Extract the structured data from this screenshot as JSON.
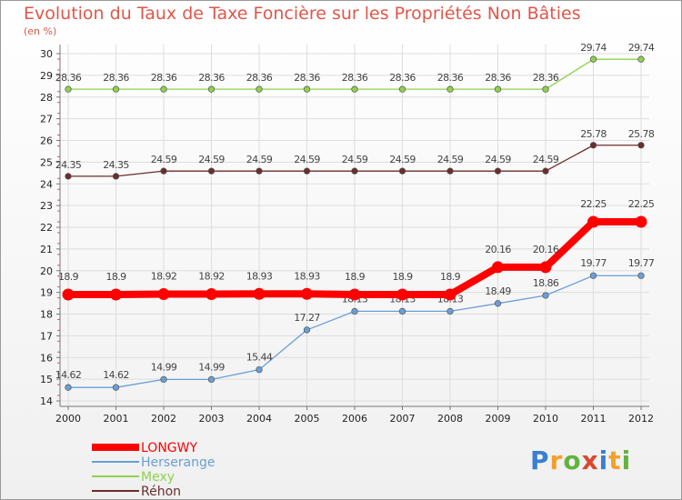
{
  "colors": {
    "title": "#e0564a",
    "LONGWY": "#ff0000",
    "Herserange": "#6a9ed6",
    "Mexy": "#8fd14f",
    "Rehon": "#6a2d2d",
    "grid": "#dddddd",
    "axis": "#777777",
    "axis_red": "#e05050"
  },
  "logo": {
    "letters": [
      "P",
      "r",
      "o",
      "x",
      "i",
      "t",
      "i"
    ],
    "colors": [
      "#3a7fd0",
      "#f2a02b",
      "#62b33e",
      "#d94a2b",
      "#3a7fd0",
      "#f2a02b",
      "#62b33e"
    ]
  },
  "chart_data": {
    "type": "line",
    "title": "Evolution du Taux de Taxe Foncière sur les Propriétés Non Bâties",
    "unit": "(en %)",
    "xlabel": "",
    "ylabel": "(en %)",
    "x": [
      "2000",
      "2001",
      "2002",
      "2003",
      "2004",
      "2005",
      "2006",
      "2007",
      "2008",
      "2009",
      "2010",
      "2011",
      "2012"
    ],
    "ylim": [
      14,
      30
    ],
    "yticks": [
      14,
      15,
      16,
      17,
      18,
      19,
      20,
      21,
      22,
      23,
      24,
      25,
      26,
      27,
      28,
      29,
      30
    ],
    "grid": true,
    "legend_position": "bottom-left",
    "series": [
      {
        "name": "Mexy",
        "values": [
          28.36,
          28.36,
          28.36,
          28.36,
          28.36,
          28.36,
          28.36,
          28.36,
          28.36,
          28.36,
          28.36,
          29.74,
          29.74
        ],
        "labels": [
          "28.36",
          "28.36",
          "28.36",
          "28.36",
          "28.36",
          "28.36",
          "28.36",
          "28.36",
          "28.36",
          "28.36",
          "28.36",
          "29.74",
          "29.74"
        ]
      },
      {
        "name": "Réhon",
        "values": [
          24.35,
          24.35,
          24.59,
          24.59,
          24.59,
          24.59,
          24.59,
          24.59,
          24.59,
          24.59,
          24.59,
          25.78,
          25.78
        ],
        "labels": [
          "24.35",
          "24.35",
          "24.59",
          "24.59",
          "24.59",
          "24.59",
          "24.59",
          "24.59",
          "24.59",
          "24.59",
          "24.59",
          "25.78",
          "25.78"
        ]
      },
      {
        "name": "Herserange",
        "values": [
          14.62,
          14.62,
          14.99,
          14.99,
          15.44,
          17.27,
          18.13,
          18.13,
          18.13,
          18.49,
          18.86,
          19.77,
          19.77
        ],
        "labels": [
          "14.62",
          "14.62",
          "14.99",
          "14.99",
          "15.44",
          "17.27",
          "18.13",
          "18.13",
          "18.13",
          "18.49",
          "18.86",
          "19.77",
          "19.77"
        ]
      },
      {
        "name": "LONGWY",
        "values": [
          18.9,
          18.9,
          18.92,
          18.92,
          18.93,
          18.93,
          18.9,
          18.9,
          18.9,
          20.16,
          20.16,
          22.25,
          22.25
        ],
        "labels": [
          "18.9",
          "18.9",
          "18.92",
          "18.92",
          "18.93",
          "18.93",
          "18.9",
          "18.9",
          "18.9",
          "20.16",
          "20.16",
          "22.25",
          "22.25"
        ]
      }
    ],
    "legend": [
      "LONGWY",
      "Herserange",
      "Mexy",
      "Réhon"
    ]
  }
}
